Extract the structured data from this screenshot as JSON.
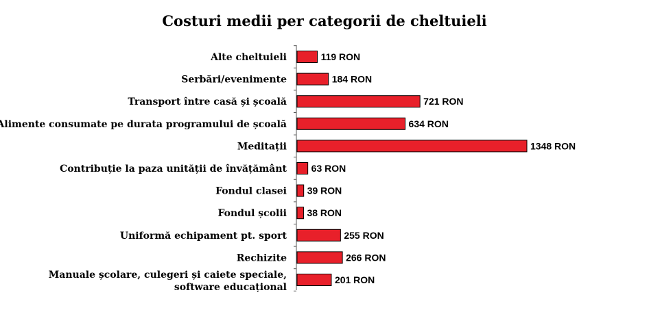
{
  "chart_data": {
    "type": "bar",
    "orientation": "horizontal",
    "title": "Costuri medii per categorii de cheltuieli",
    "unit": "RON",
    "categories": [
      "Alte cheltuieli",
      "Serbări/evenimente",
      "Transport între casă și școală",
      "Alimente consumate pe durata programului de școală",
      "Meditații",
      "Contribuție la paza unității de învățământ",
      "Fondul clasei",
      "Fondul școlii",
      "Uniformă echipament pt. sport",
      "Rechizite",
      [
        "Manuale școlare, culegeri și caiete speciale,",
        "software educațional"
      ]
    ],
    "values": [
      119,
      184,
      721,
      634,
      1348,
      63,
      39,
      38,
      255,
      266,
      201
    ],
    "value_labels": [
      "119 RON",
      "184 RON",
      "721 RON",
      "634 RON",
      "1348 RON",
      "63 RON",
      "39 RON",
      "38 RON",
      "255 RON",
      "266 RON",
      "201 RON"
    ],
    "bar_color": "#e8202a",
    "grid": false,
    "legend": "none"
  }
}
